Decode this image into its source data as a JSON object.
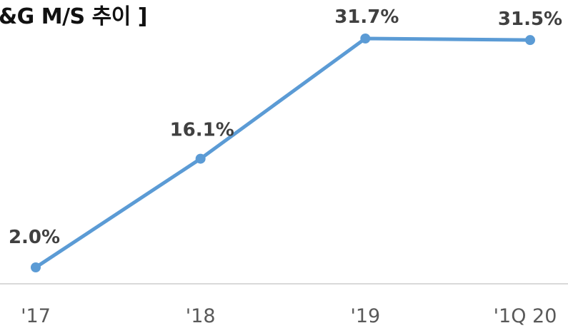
{
  "chart_data": {
    "type": "line",
    "title": "&G M/S 추이 ]",
    "categories": [
      "'17",
      "'18",
      "'19",
      "'1Q 20"
    ],
    "series": [
      {
        "values": [
          2.0,
          16.1,
          31.7,
          31.5
        ],
        "labels": [
          "2.0%",
          "16.1%",
          "31.7%",
          "31.5%"
        ]
      }
    ],
    "ylim": [
      0,
      35
    ],
    "grid": false,
    "legend": "none",
    "colors": {
      "line": "#5b9bd5",
      "label": "#404040",
      "axis": "#d9d9d9",
      "tick": "#595959"
    }
  }
}
